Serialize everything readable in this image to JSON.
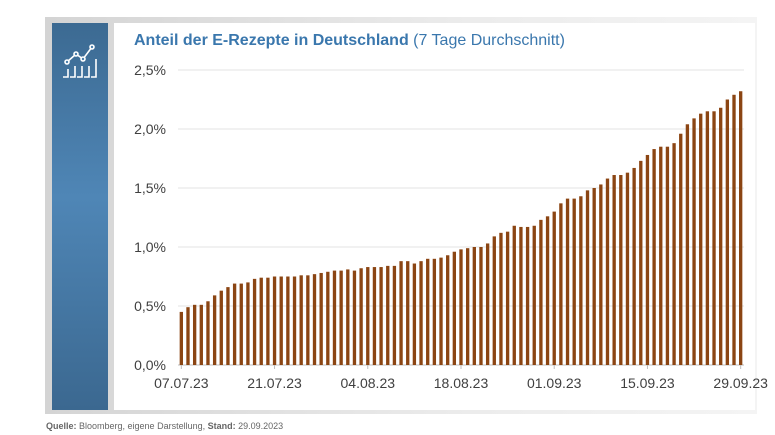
{
  "title_bold": "Anteil der E-Rezepte in Deutschland",
  "title_rest": " (7 Tage Durchschnitt)",
  "source": {
    "label": "Quelle:",
    "text": " Bloomberg, eigene Darstellung, ",
    "stand_label": "Stand:",
    "stand_value": " 29.09.2023"
  },
  "colors": {
    "bar": "#8b4513",
    "title": "#3a77ad",
    "sidebar": "#4a7fad"
  },
  "chart_data": {
    "type": "bar",
    "title": "Anteil der E-Rezepte in Deutschland (7 Tage Durchschnitt)",
    "xlabel": "",
    "ylabel": "",
    "ylim": [
      0,
      2.5
    ],
    "yticks": [
      0,
      0.5,
      1.0,
      1.5,
      2.0,
      2.5
    ],
    "ytick_labels": [
      "0,0%",
      "0,5%",
      "1,0%",
      "1,5%",
      "2,0%",
      "2,5%"
    ],
    "xtick_labels": [
      "07.07.23",
      "21.07.23",
      "04.08.23",
      "18.08.23",
      "01.09.23",
      "15.09.23",
      "29.09.23"
    ],
    "xtick_every": 14,
    "grid": true,
    "unit": "%",
    "start_date": "07.07.23",
    "end_date": "29.09.23",
    "values": [
      0.45,
      0.49,
      0.51,
      0.51,
      0.54,
      0.59,
      0.63,
      0.66,
      0.69,
      0.69,
      0.7,
      0.73,
      0.74,
      0.74,
      0.75,
      0.75,
      0.75,
      0.75,
      0.76,
      0.76,
      0.77,
      0.78,
      0.79,
      0.8,
      0.8,
      0.81,
      0.8,
      0.82,
      0.83,
      0.83,
      0.83,
      0.84,
      0.84,
      0.88,
      0.88,
      0.86,
      0.88,
      0.9,
      0.9,
      0.91,
      0.93,
      0.96,
      0.98,
      0.99,
      1.0,
      1.0,
      1.03,
      1.09,
      1.12,
      1.13,
      1.18,
      1.17,
      1.17,
      1.18,
      1.23,
      1.26,
      1.3,
      1.37,
      1.41,
      1.41,
      1.43,
      1.48,
      1.5,
      1.53,
      1.58,
      1.61,
      1.61,
      1.63,
      1.67,
      1.73,
      1.78,
      1.83,
      1.85,
      1.85,
      1.88,
      1.96,
      2.04,
      2.09,
      2.13,
      2.15,
      2.15,
      2.18,
      2.25,
      2.29,
      2.32
    ]
  }
}
